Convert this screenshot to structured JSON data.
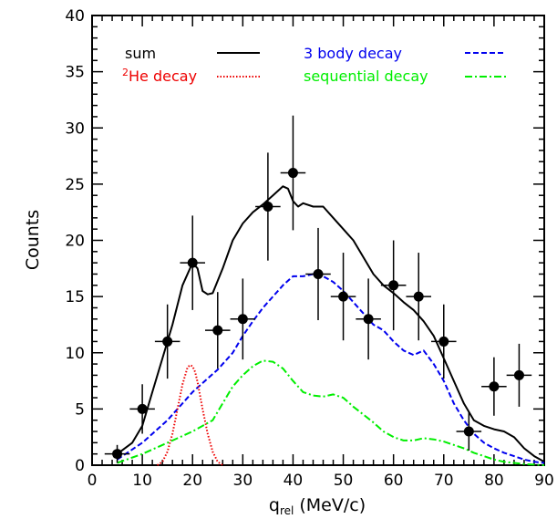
{
  "chart_data": {
    "type": "line",
    "title": "",
    "xlabel": "q",
    "xlabel_subscript": "rel",
    "xlabel_unit": " (MeV/c)",
    "ylabel": "Counts",
    "xlim": [
      0,
      90
    ],
    "ylim": [
      0,
      40
    ],
    "x_ticks": [
      0,
      10,
      20,
      30,
      40,
      50,
      60,
      70,
      80,
      90
    ],
    "y_ticks": [
      0,
      5,
      10,
      15,
      20,
      25,
      30,
      35,
      40
    ],
    "grid": false,
    "legend_position": "top",
    "data_points": {
      "x": [
        5,
        10,
        15,
        20,
        25,
        30,
        35,
        40,
        45,
        50,
        55,
        60,
        65,
        70,
        75,
        80,
        85
      ],
      "y": [
        1,
        5,
        11,
        18,
        12,
        13,
        23,
        26,
        17,
        15,
        13,
        16,
        15,
        11,
        3,
        7,
        8
      ],
      "y_err_low": [
        0.8,
        2.2,
        3.3,
        4.2,
        3.4,
        3.6,
        4.8,
        5.1,
        4.1,
        3.9,
        3.6,
        4.0,
        3.9,
        3.3,
        1.7,
        2.6,
        2.8
      ],
      "y_err_high": [
        0.8,
        2.2,
        3.3,
        4.2,
        3.4,
        3.6,
        4.8,
        5.1,
        4.1,
        3.9,
        3.6,
        4.0,
        3.9,
        3.3,
        1.7,
        2.6,
        2.8
      ],
      "x_halfwidth": 2.5,
      "color": "#000000"
    },
    "series": [
      {
        "name": "sum",
        "color": "#000000",
        "dash": "solid",
        "x": [
          5,
          8,
          10,
          12,
          14,
          16,
          18,
          20,
          21,
          22,
          23,
          24,
          26,
          28,
          30,
          32,
          34,
          36,
          38,
          39,
          40,
          41,
          42,
          44,
          46,
          48,
          50,
          52,
          54,
          56,
          58,
          60,
          62,
          64,
          66,
          68,
          70,
          72,
          74,
          76,
          78,
          80,
          82,
          84,
          86,
          88,
          90
        ],
        "y": [
          1.0,
          2.0,
          3.5,
          6.5,
          9.5,
          12.5,
          16.0,
          18.0,
          17.5,
          15.5,
          15.2,
          15.3,
          17.5,
          20.0,
          21.5,
          22.5,
          23.2,
          24.0,
          24.8,
          24.6,
          23.5,
          23.0,
          23.3,
          23.0,
          23.0,
          22.0,
          21.0,
          20.0,
          18.5,
          17.0,
          16.0,
          15.3,
          14.5,
          13.8,
          12.8,
          11.5,
          9.5,
          7.5,
          5.5,
          4.0,
          3.5,
          3.2,
          3.0,
          2.5,
          1.5,
          0.8,
          0.3
        ]
      },
      {
        "name": "3 body decay",
        "color": "#0000ee",
        "dash": "dashed",
        "x": [
          5,
          10,
          15,
          20,
          25,
          28,
          30,
          32,
          34,
          36,
          38,
          40,
          42,
          44,
          46,
          48,
          50,
          52,
          54,
          56,
          58,
          60,
          62,
          64,
          66,
          68,
          70,
          72,
          74,
          76,
          78,
          80,
          82,
          84,
          86,
          88,
          90
        ],
        "y": [
          0.5,
          2.0,
          4.0,
          6.5,
          8.5,
          10.0,
          11.5,
          12.8,
          14.0,
          15.0,
          16.0,
          16.8,
          16.8,
          17.0,
          16.8,
          16.3,
          15.5,
          14.5,
          13.5,
          12.5,
          12.0,
          11.0,
          10.2,
          9.8,
          10.2,
          9.0,
          7.5,
          5.5,
          4.0,
          2.8,
          2.0,
          1.5,
          1.1,
          0.8,
          0.5,
          0.3,
          0.2
        ]
      },
      {
        "name": "²He decay",
        "color": "#ee0000",
        "dash": "dotted",
        "x": [
          13,
          14,
          15,
          16,
          17,
          18,
          19,
          19.5,
          20,
          20.5,
          21,
          22,
          23,
          24,
          25,
          26
        ],
        "y": [
          0.0,
          0.3,
          1.2,
          2.8,
          5.0,
          7.2,
          8.7,
          8.9,
          8.8,
          8.3,
          7.4,
          5.0,
          2.8,
          1.2,
          0.3,
          0.0
        ]
      },
      {
        "name": "sequential decay",
        "color": "#00ee00",
        "dash": "dashdot",
        "x": [
          5,
          10,
          15,
          20,
          24,
          26,
          28,
          30,
          32,
          34,
          36,
          38,
          40,
          42,
          44,
          46,
          48,
          50,
          52,
          54,
          56,
          58,
          60,
          62,
          64,
          66,
          68,
          70,
          72,
          74,
          76,
          78,
          80,
          82,
          84,
          86,
          88,
          90
        ],
        "y": [
          0.2,
          1.0,
          2.0,
          3.0,
          4.0,
          5.5,
          7.0,
          8.0,
          8.8,
          9.3,
          9.2,
          8.6,
          7.5,
          6.5,
          6.2,
          6.1,
          6.3,
          6.0,
          5.2,
          4.5,
          3.8,
          3.0,
          2.5,
          2.2,
          2.2,
          2.4,
          2.3,
          2.1,
          1.8,
          1.5,
          1.1,
          0.8,
          0.5,
          0.3,
          0.2,
          0.1,
          0.05,
          0.0
        ]
      }
    ]
  },
  "legend": {
    "sum_label": "sum",
    "he_sup": "2",
    "he_label": "He decay",
    "three_body_label": "3 body decay",
    "sequential_label": "sequential decay"
  }
}
